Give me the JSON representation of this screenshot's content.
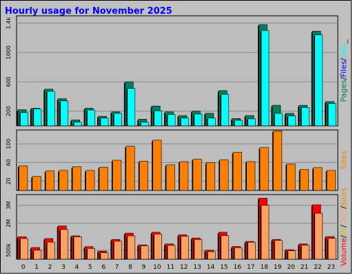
{
  "colors": {
    "background": "#c0c0c0",
    "plot_bg": "#bdbdbd",
    "title": "#0000ff",
    "pages": "#00805c",
    "files": "#0000ff",
    "hits": "#00ffff",
    "sites": "#ff8000",
    "volume": "#ff0000",
    "in_out": "#ffa060",
    "inout_label": "#c8c800"
  },
  "chart_data": {
    "type": "bar",
    "title": "Hourly usage for November 2025",
    "categories": [
      "0",
      "1",
      "2",
      "3",
      "4",
      "5",
      "6",
      "7",
      "8",
      "9",
      "10",
      "11",
      "12",
      "13",
      "14",
      "15",
      "16",
      "17",
      "18",
      "19",
      "20",
      "21",
      "22",
      "23"
    ],
    "panels": [
      {
        "id": "requests",
        "ylim": [
          0,
          1500
        ],
        "yticks": [
          {
            "value": 200,
            "label": "200"
          },
          {
            "value": 600,
            "label": "600"
          },
          {
            "value": 1000,
            "label": "1000"
          },
          {
            "value": 1400,
            "label": "1.4k"
          }
        ],
        "ylabel_parts": [
          {
            "text": "Pages",
            "color": "#00805c"
          },
          {
            "text": "/",
            "color": "#000000"
          },
          {
            "text": "Files",
            "color": "#0000ff"
          },
          {
            "text": "/",
            "color": "#000000"
          },
          {
            "text": "Hits",
            "color": "#00ffff"
          },
          {
            "text": "_",
            "color": "#000000"
          }
        ],
        "series": [
          {
            "color": "#00805c",
            "values": [
              220,
              240,
              500,
              370,
              80,
              240,
              130,
              190,
              600,
              90,
              270,
              190,
              140,
              200,
              170,
              480,
              100,
              140,
              1380,
              280,
              170,
              280,
              1290,
              330
            ]
          },
          {
            "color": "#00ffff",
            "values": [
              180,
              230,
              470,
              340,
              50,
              215,
              105,
              170,
              510,
              50,
              205,
              155,
              105,
              160,
              105,
              430,
              75,
              95,
              1300,
              170,
              135,
              250,
              1240,
              305
            ]
          }
        ]
      },
      {
        "id": "sites",
        "ylim": [
          0,
          130
        ],
        "yticks": [
          {
            "value": 20,
            "label": "20"
          },
          {
            "value": 60,
            "label": "60"
          },
          {
            "value": 100,
            "label": "100"
          }
        ],
        "ylabel_parts": [
          {
            "text": "Sites",
            "color": "#ff8000"
          }
        ],
        "series": [
          {
            "color": "#ff8000",
            "values": [
              53,
              30,
              42,
              43,
              51,
              43,
              50,
              65,
              95,
              63,
              108,
              55,
              62,
              67,
              60,
              66,
              82,
              62,
              92,
              128,
              57,
              45,
              49,
              43
            ]
          }
        ]
      },
      {
        "id": "volume",
        "ylim": [
          0,
          3600000
        ],
        "yticks": [
          {
            "value": 500000,
            "label": "500k"
          },
          {
            "value": 2000000,
            "label": "2M"
          },
          {
            "value": 3000000,
            "label": "3M"
          }
        ],
        "ylabel_parts": [
          {
            "text": "Volume",
            "color": "#ff0000"
          },
          {
            "text": "/",
            "color": "#000000"
          },
          {
            "text": "IN",
            "color": "#c8c800"
          },
          {
            "text": "/",
            "color": "#000000"
          },
          {
            "text": "OUT",
            "color": "#ffa060"
          },
          {
            "text": "/",
            "color": "#000000"
          },
          {
            "text": "Sites",
            "color": "#ff8000"
          }
        ],
        "series": [
          {
            "color": "#ff0000",
            "values": [
              1250000,
              650000,
              1150000,
              1850000,
              1300000,
              700000,
              450000,
              1100000,
              1450000,
              800000,
              1500000,
              850000,
              1360000,
              1180000,
              500000,
              1500000,
              710000,
              990000,
              3400000,
              1100000,
              530000,
              850000,
              3030000,
              1260000
            ]
          },
          {
            "color": "#ffa060",
            "values": [
              1150000,
              500000,
              950000,
              1650000,
              1250000,
              600000,
              360000,
              1000000,
              1300000,
              750000,
              1400000,
              770000,
              1280000,
              1100000,
              420000,
              1310000,
              640000,
              950000,
              3000000,
              1050000,
              470000,
              780000,
              2560000,
              1160000
            ]
          }
        ]
      }
    ]
  }
}
